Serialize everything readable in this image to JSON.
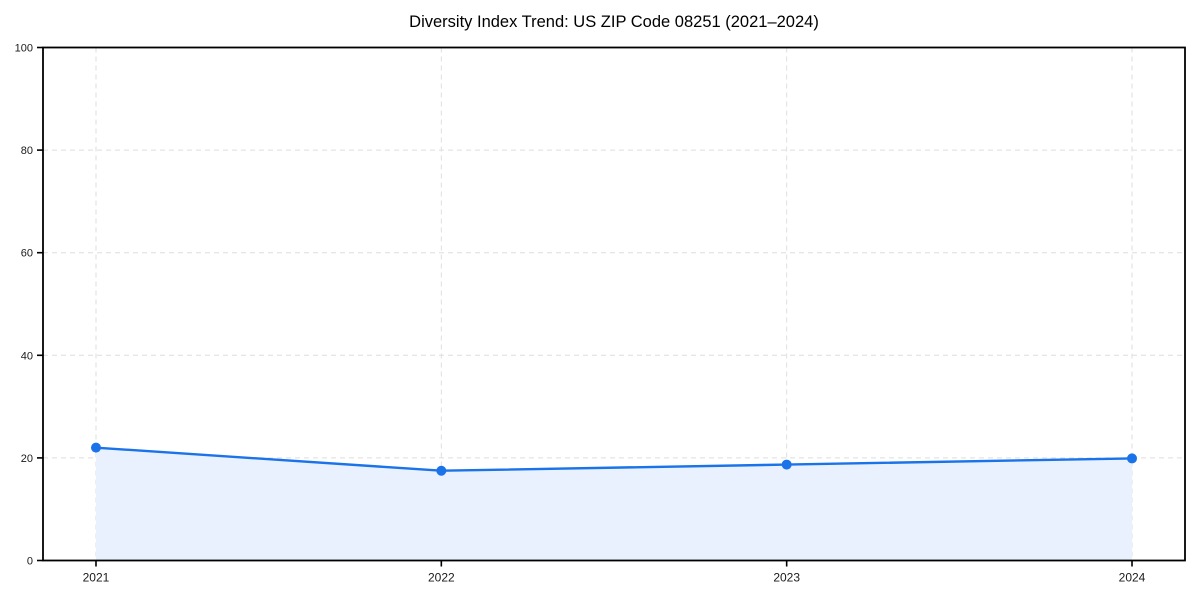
{
  "chart_data": {
    "type": "area",
    "title": "Diversity Index Trend: US ZIP Code 08251 (2021–2024)",
    "categories": [
      "2021",
      "2022",
      "2023",
      "2024"
    ],
    "series": [
      {
        "name": "Diversity Index",
        "values": [
          22.0,
          17.5,
          18.7,
          19.9
        ]
      }
    ],
    "xlabel": "",
    "ylabel": "",
    "ylim": [
      0,
      100
    ],
    "yticks": [
      0,
      20,
      40,
      60,
      80,
      100
    ],
    "grid": true,
    "grid_style": "dashed",
    "legend": "none",
    "colors": {
      "line": "#1a73e8",
      "marker": "#1a73e8",
      "area_fill": "#e8f1fd",
      "grid": "#dedede",
      "axis": "#000000",
      "background": "#ffffff",
      "tick_label": "#1a1a1a"
    }
  }
}
